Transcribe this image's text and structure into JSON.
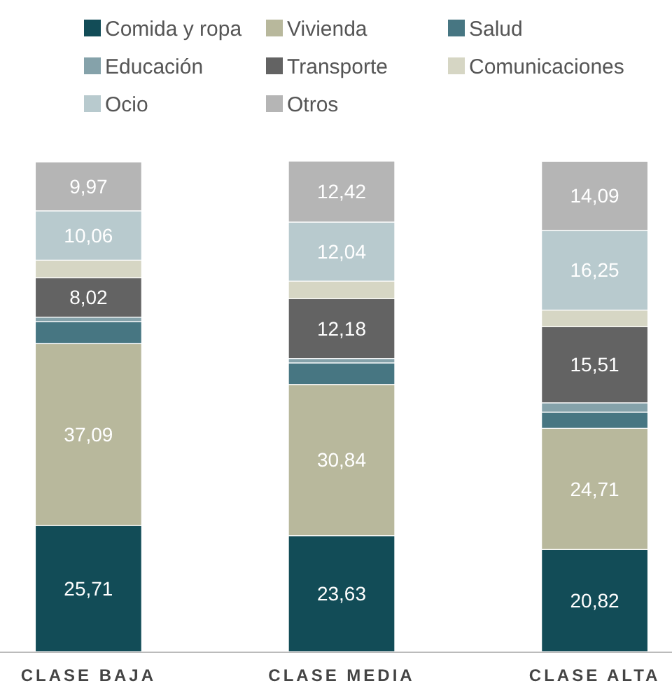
{
  "chart_data": {
    "type": "bar",
    "stacked": true,
    "legend": "top",
    "categories": [
      "CLASE BAJA",
      "CLASE MEDIA",
      "CLASE ALTA"
    ],
    "series": [
      {
        "name": "Comida y ropa",
        "color": "#124c57",
        "values": [
          25.71,
          23.63,
          20.82
        ],
        "value_labels": [
          "25,71",
          "23,63",
          "20,82"
        ]
      },
      {
        "name": "Vivienda",
        "color": "#b8b89c",
        "values": [
          37.09,
          30.84,
          24.71
        ],
        "value_labels": [
          "37,09",
          "30,84",
          "24,71"
        ]
      },
      {
        "name": "Salud",
        "color": "#477682",
        "values": [
          4.5,
          4.4,
          3.3
        ],
        "value_labels": [
          null,
          null,
          null
        ]
      },
      {
        "name": "Educación",
        "color": "#85a2aa",
        "values": [
          0.9,
          0.9,
          1.9
        ],
        "value_labels": [
          null,
          null,
          null
        ]
      },
      {
        "name": "Transporte",
        "color": "#636363",
        "values": [
          8.02,
          12.18,
          15.51
        ],
        "value_labels": [
          "8,02",
          "12,18",
          "15,51"
        ]
      },
      {
        "name": "Comunicaciones",
        "color": "#d6d6c4",
        "values": [
          3.6,
          3.6,
          3.4
        ],
        "value_labels": [
          null,
          null,
          null
        ]
      },
      {
        "name": "Ocio",
        "color": "#b8cace",
        "values": [
          10.06,
          12.04,
          16.25
        ],
        "value_labels": [
          "10,06",
          "12,04",
          "16,25"
        ]
      },
      {
        "name": "Otros",
        "color": "#b5b5b5",
        "values": [
          9.97,
          12.42,
          14.09
        ],
        "value_labels": [
          "9,97",
          "12,42",
          "14,09"
        ]
      }
    ]
  }
}
